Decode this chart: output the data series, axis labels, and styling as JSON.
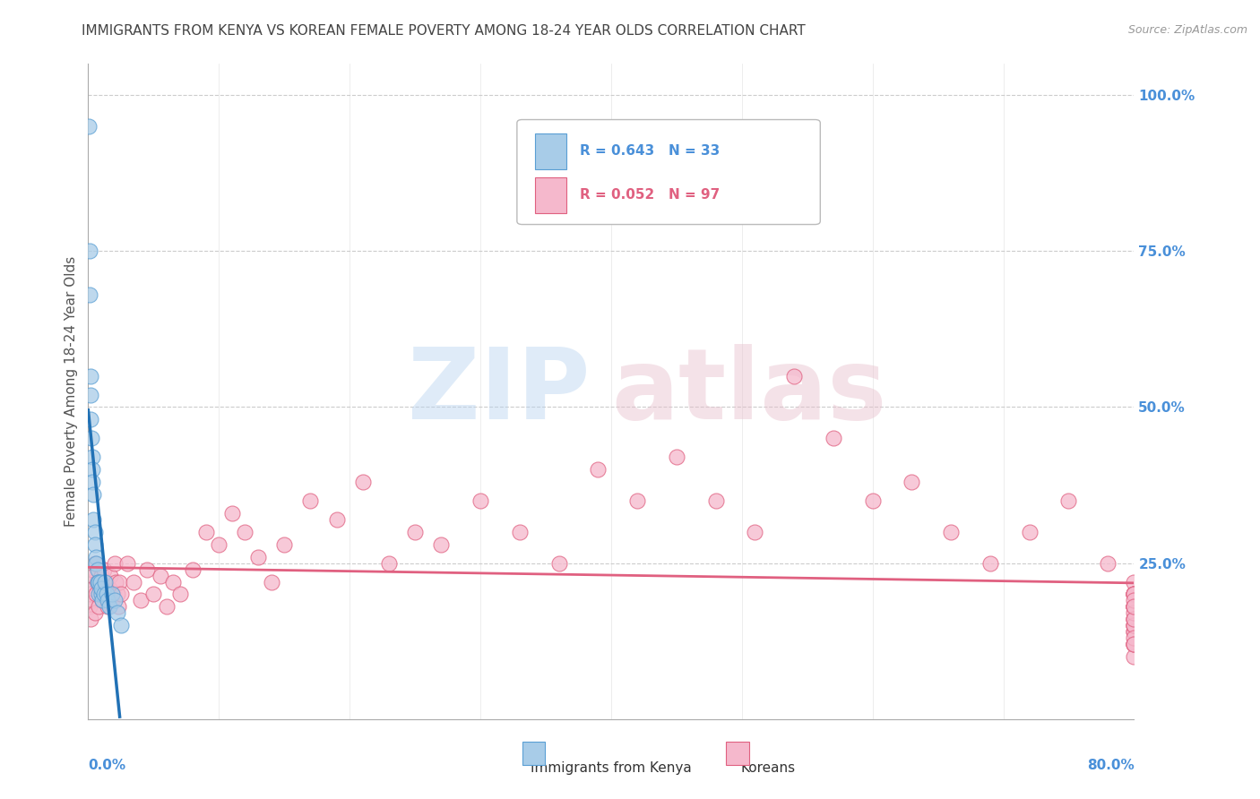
{
  "title": "IMMIGRANTS FROM KENYA VS KOREAN FEMALE POVERTY AMONG 18-24 YEAR OLDS CORRELATION CHART",
  "source": "Source: ZipAtlas.com",
  "ylabel": "Female Poverty Among 18-24 Year Olds",
  "legend_entries": [
    {
      "label": "Immigrants from Kenya",
      "R": "0.643",
      "N": "33",
      "color": "#a8cce8",
      "edge": "#5a9fd4",
      "text_color": "#4a90d9"
    },
    {
      "label": "Koreans",
      "R": "0.052",
      "N": "97",
      "color": "#f5b8cc",
      "edge": "#e06080",
      "text_color": "#e06080"
    }
  ],
  "kenya_color": "#a8cce8",
  "kenya_edge": "#5a9fd4",
  "kenya_line_color": "#2171b5",
  "korea_color": "#f5b8cc",
  "korea_edge": "#e06080",
  "korea_line_color": "#e06080",
  "right_axis_color": "#4a90d9",
  "title_color": "#444444",
  "grid_color": "#cccccc",
  "background_color": "#ffffff",
  "kenya_scatter_x": [
    0.001,
    0.001,
    0.002,
    0.002,
    0.003,
    0.003,
    0.003,
    0.004,
    0.004,
    0.005,
    0.005,
    0.005,
    0.006,
    0.006,
    0.007,
    0.007,
    0.008,
    0.008,
    0.009,
    0.01,
    0.01,
    0.011,
    0.012,
    0.013,
    0.014,
    0.015,
    0.016,
    0.018,
    0.02,
    0.022,
    0.025,
    0.028,
    0.03
  ],
  "kenya_scatter_y": [
    0.95,
    0.75,
    0.68,
    0.56,
    0.5,
    0.47,
    0.42,
    0.4,
    0.38,
    0.36,
    0.35,
    0.33,
    0.32,
    0.3,
    0.28,
    0.26,
    0.25,
    0.24,
    0.23,
    0.22,
    0.2,
    0.22,
    0.21,
    0.2,
    0.22,
    0.19,
    0.2,
    0.18,
    0.19,
    0.17,
    0.16,
    0.15,
    0.12
  ],
  "korea_scatter_x": [
    0.001,
    0.002,
    0.003,
    0.004,
    0.005,
    0.006,
    0.007,
    0.008,
    0.009,
    0.01,
    0.012,
    0.013,
    0.014,
    0.015,
    0.016,
    0.017,
    0.018,
    0.019,
    0.02,
    0.022,
    0.024,
    0.026,
    0.028,
    0.03,
    0.033,
    0.036,
    0.039,
    0.042,
    0.045,
    0.048,
    0.052,
    0.056,
    0.06,
    0.065,
    0.07,
    0.075,
    0.08,
    0.085,
    0.09,
    0.095,
    0.1,
    0.11,
    0.12,
    0.13,
    0.14,
    0.15,
    0.16,
    0.17,
    0.18,
    0.2,
    0.22,
    0.24,
    0.26,
    0.28,
    0.3,
    0.32,
    0.34,
    0.36,
    0.38,
    0.4,
    0.42,
    0.44,
    0.46,
    0.48,
    0.5,
    0.52,
    0.54,
    0.56,
    0.58,
    0.6,
    0.62,
    0.64,
    0.66,
    0.68,
    0.7,
    0.72,
    0.74,
    0.76,
    0.78,
    0.8,
    0.8,
    0.8,
    0.8,
    0.8,
    0.8,
    0.8,
    0.8,
    0.8,
    0.8,
    0.8,
    0.8,
    0.8,
    0.8,
    0.8,
    0.8,
    0.8,
    0.8
  ],
  "korea_scatter_y": [
    0.2,
    0.18,
    0.22,
    0.15,
    0.24,
    0.19,
    0.21,
    0.16,
    0.23,
    0.2,
    0.25,
    0.17,
    0.22,
    0.24,
    0.19,
    0.21,
    0.2,
    0.23,
    0.25,
    0.22,
    0.2,
    0.24,
    0.19,
    0.23,
    0.21,
    0.2,
    0.22,
    0.19,
    0.24,
    0.21,
    0.23,
    0.2,
    0.22,
    0.19,
    0.24,
    0.21,
    0.23,
    0.2,
    0.22,
    0.24,
    0.21,
    0.25,
    0.23,
    0.26,
    0.3,
    0.28,
    0.35,
    0.32,
    0.38,
    0.42,
    0.45,
    0.4,
    0.36,
    0.33,
    0.3,
    0.32,
    0.25,
    0.28,
    0.22,
    0.35,
    0.3,
    0.28,
    0.33,
    0.38,
    0.43,
    0.48,
    0.45,
    0.4,
    0.55,
    0.5,
    0.35,
    0.38,
    0.3,
    0.42,
    0.35,
    0.3,
    0.28,
    0.32,
    0.25,
    0.2,
    0.18,
    0.22,
    0.15,
    0.19,
    0.12,
    0.16,
    0.2,
    0.14,
    0.18,
    0.1,
    0.15,
    0.22,
    0.19,
    0.17,
    0.12,
    0.14,
    0.16
  ],
  "xmin": 0.0,
  "xmax": 0.8,
  "ymin": 0.0,
  "ymax": 1.05
}
